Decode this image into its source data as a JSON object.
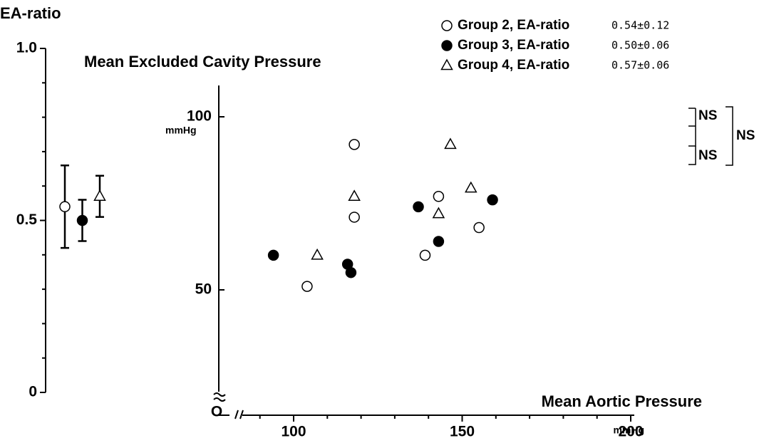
{
  "chart_data": [
    {
      "type": "errorbar",
      "ylabel": "EA-ratio",
      "ylim": [
        0,
        1
      ],
      "yticks": [
        0,
        0.5,
        {
          "value": 1,
          "label": "1.0"
        }
      ],
      "yticks_minor": [
        0.1,
        0.2,
        0.3,
        0.4,
        0.6,
        0.7,
        0.8,
        0.9
      ],
      "values": [
        0.54,
        0.5,
        0.57
      ],
      "errors": [
        0.12,
        0.06,
        0.06
      ],
      "value_labels": [
        "0.54±0.12",
        "0.50±0.06",
        "0.57±0.06"
      ],
      "markers": [
        "circle-open",
        "circle-filled",
        "triangle-open"
      ]
    },
    {
      "type": "scatter",
      "title": "Mean Excluded Cavity Pressure",
      "ylabel_unit": "mmHg",
      "xlabel": "Mean Aortic Pressure",
      "xlabel_unit": "mmHg",
      "origin_label": "O",
      "xlim": [
        80,
        200
      ],
      "ylim": [
        20,
        110
      ],
      "xticks": [
        100,
        150,
        200
      ],
      "xticks_minor": [
        90,
        110,
        120,
        130,
        140,
        160,
        170,
        180,
        190
      ],
      "yticks": [
        50,
        100
      ],
      "series": [
        {
          "name": "Group 2, EA-ratio",
          "marker": "circle-open",
          "color": "#000000",
          "x": [
            104,
            118,
            118,
            139,
            143,
            155
          ],
          "y": [
            51,
            92,
            71,
            60,
            77,
            68
          ]
        },
        {
          "name": "Group 3, EA-ratio",
          "marker": "circle-filled",
          "color": "#000000",
          "x": [
            94,
            116,
            117,
            137,
            143,
            159
          ],
          "y": [
            60,
            57.4,
            55,
            74,
            64,
            76
          ]
        },
        {
          "name": "Group 4, EA-ratio",
          "marker": "triangle-open",
          "color": "#000000",
          "x": [
            107,
            118,
            143,
            146.5,
            152.6
          ],
          "y": [
            60,
            77,
            72,
            92,
            79.4
          ]
        }
      ],
      "annotations": [
        "NS",
        "NS",
        "NS"
      ]
    }
  ]
}
